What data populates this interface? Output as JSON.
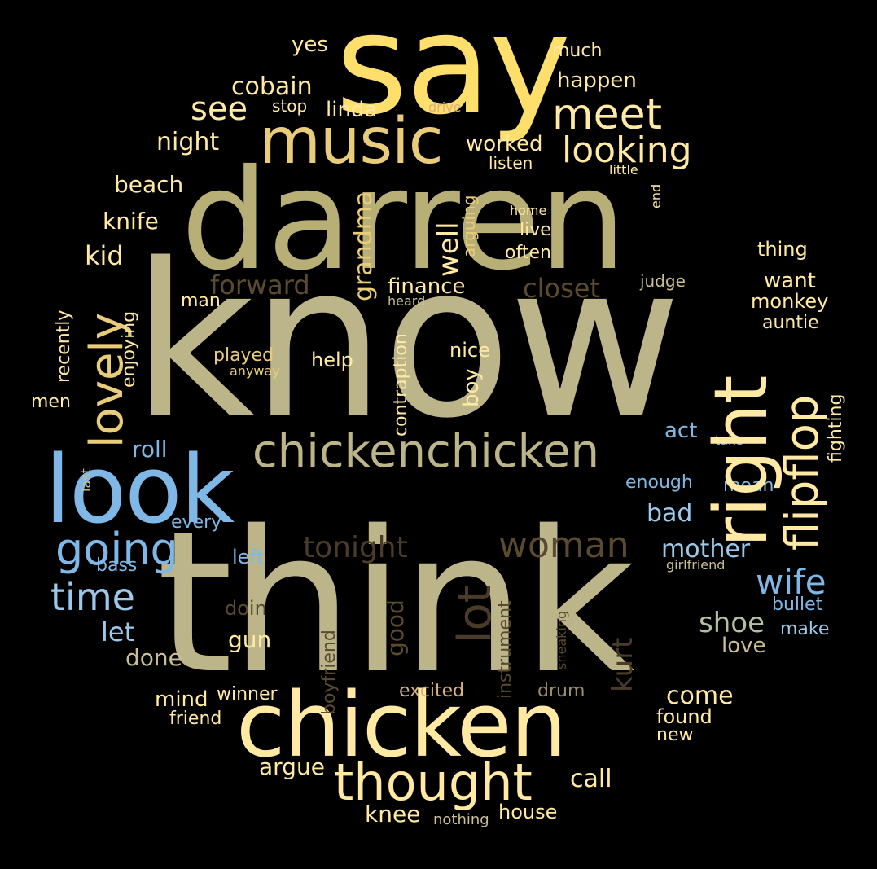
{
  "palette": {
    "background": "#000000",
    "yellow": "#FFDF6B",
    "light_yellow": "#FFE9A3",
    "gold": "#E8CC7A",
    "khaki": "#C4BD8E",
    "olive_khaki": "#B8AF76",
    "beige": "#C9BE95",
    "sage": "#B7BFA3",
    "sky_blue": "#7FB8E6",
    "light_blue": "#9CC8EA",
    "brown": "#5A4A30",
    "dark_brown": "#4A3C28",
    "tan": "#D8B27A",
    "muted_tan": "#9C8C68"
  },
  "words": [
    {
      "text": "know",
      "color": "#BDB58A"
    },
    {
      "text": "think",
      "color": "#BDB58A"
    },
    {
      "text": "darren",
      "color": "#B8AF76"
    },
    {
      "text": "say",
      "color": "#FFDF6B"
    },
    {
      "text": "chicken",
      "color": "#FFE9A3"
    },
    {
      "text": "look",
      "color": "#7FB8E6"
    },
    {
      "text": "music",
      "color": "#E8CC7A"
    },
    {
      "text": "right",
      "color": "#FFE9A3"
    },
    {
      "text": "chickenchicken",
      "color": "#BDB58A"
    },
    {
      "text": "thought",
      "color": "#FFE9A3"
    },
    {
      "text": "meet",
      "color": "#FFE9A3"
    },
    {
      "text": "flipflop",
      "color": "#FFE9A3"
    },
    {
      "text": "lovely",
      "color": "#E8CC7A"
    },
    {
      "text": "going",
      "color": "#7FB8E6"
    },
    {
      "text": "woman",
      "color": "#5A4A30"
    },
    {
      "text": "lot",
      "color": "#4A3C28"
    },
    {
      "text": "looking",
      "color": "#FFE9A3"
    },
    {
      "text": "time",
      "color": "#9CC8EA"
    },
    {
      "text": "tonight",
      "color": "#4A3C28"
    },
    {
      "text": "wife",
      "color": "#7FB8E6"
    },
    {
      "text": "see",
      "color": "#FFE9A3"
    },
    {
      "text": "forward",
      "color": "#5A4A30"
    },
    {
      "text": "closet",
      "color": "#5A4A30"
    },
    {
      "text": "mother",
      "color": "#9CC8EA"
    },
    {
      "text": "grandma",
      "color": "#E8CC7A"
    },
    {
      "text": "shoe",
      "color": "#B7BFA3"
    },
    {
      "text": "kurt",
      "color": "#4A3C28"
    },
    {
      "text": "cobain",
      "color": "#FFE9A3"
    },
    {
      "text": "happen",
      "color": "#FFE9A3"
    },
    {
      "text": "night",
      "color": "#FFE9A3"
    },
    {
      "text": "beach",
      "color": "#FFE9A3"
    },
    {
      "text": "knife",
      "color": "#FFE9A3"
    },
    {
      "text": "kid",
      "color": "#FFE9A3"
    },
    {
      "text": "well",
      "color": "#FFE9A3"
    },
    {
      "text": "finance",
      "color": "#FFE9A3"
    },
    {
      "text": "worked",
      "color": "#FFE9A3"
    },
    {
      "text": "linda",
      "color": "#FFE9A3"
    },
    {
      "text": "yes",
      "color": "#FFE9A3"
    },
    {
      "text": "much",
      "color": "#FFE9A3"
    },
    {
      "text": "stop",
      "color": "#FFE9A3"
    },
    {
      "text": "drive",
      "color": "#D8B27A"
    },
    {
      "text": "listen",
      "color": "#FFE9A3"
    },
    {
      "text": "little",
      "color": "#FFE9A3"
    },
    {
      "text": "end",
      "color": "#FFE9A3"
    },
    {
      "text": "home",
      "color": "#FFE9A3"
    },
    {
      "text": "live",
      "color": "#FFE9A3"
    },
    {
      "text": "often",
      "color": "#FFE9A3"
    },
    {
      "text": "arguing",
      "color": "#E8CC7A"
    },
    {
      "text": "thing",
      "color": "#FFE9A3"
    },
    {
      "text": "want",
      "color": "#FFE9A3"
    },
    {
      "text": "monkey",
      "color": "#FFE9A3"
    },
    {
      "text": "judge",
      "color": "#C9BE95"
    },
    {
      "text": "auntie",
      "color": "#FFE9A3"
    },
    {
      "text": "fighting",
      "color": "#FFE9A3"
    },
    {
      "text": "take",
      "color": "#7FB8E6"
    },
    {
      "text": "act",
      "color": "#7FB8E6"
    },
    {
      "text": "enough",
      "color": "#7FB8E6"
    },
    {
      "text": "mean",
      "color": "#7FB8E6"
    },
    {
      "text": "bad",
      "color": "#9CC8EA"
    },
    {
      "text": "girlfriend",
      "color": "#C9BE95"
    },
    {
      "text": "bullet",
      "color": "#7FB8E6"
    },
    {
      "text": "make",
      "color": "#9CC8EA"
    },
    {
      "text": "love",
      "color": "#C9BE95"
    },
    {
      "text": "come",
      "color": "#FFE9A3"
    },
    {
      "text": "found",
      "color": "#FFE9A3"
    },
    {
      "text": "new",
      "color": "#FFE9A3"
    },
    {
      "text": "call",
      "color": "#FFE9A3"
    },
    {
      "text": "house",
      "color": "#FFE9A3"
    },
    {
      "text": "nothing",
      "color": "#C9BE95"
    },
    {
      "text": "knee",
      "color": "#FFE9A3"
    },
    {
      "text": "argue",
      "color": "#FFE9A3"
    },
    {
      "text": "drum",
      "color": "#9C8C68"
    },
    {
      "text": "excited",
      "color": "#D8B27A"
    },
    {
      "text": "sneaking",
      "color": "#5A4A30"
    },
    {
      "text": "instrument",
      "color": "#5A4A30"
    },
    {
      "text": "boyfriend",
      "color": "#5A4A30"
    },
    {
      "text": "good",
      "color": "#5A4A30"
    },
    {
      "text": "winner",
      "color": "#FFE9A3"
    },
    {
      "text": "friend",
      "color": "#FFE9A3"
    },
    {
      "text": "mind",
      "color": "#FFE9A3"
    },
    {
      "text": "done",
      "color": "#C9BE95"
    },
    {
      "text": "gun",
      "color": "#FFE9A3"
    },
    {
      "text": "doin",
      "color": "#5A4A30"
    },
    {
      "text": "let",
      "color": "#9CC8EA"
    },
    {
      "text": "left",
      "color": "#7FB8E6"
    },
    {
      "text": "bass",
      "color": "#7FB8E6"
    },
    {
      "text": "every",
      "color": "#7FB8E6"
    },
    {
      "text": "roll",
      "color": "#7FB8E6"
    },
    {
      "text": "last",
      "color": "#C9BE95"
    },
    {
      "text": "men",
      "color": "#FFE9A3"
    },
    {
      "text": "recently",
      "color": "#FFE9A3"
    },
    {
      "text": "enjoying",
      "color": "#FFE9A3"
    },
    {
      "text": "man",
      "color": "#FFE9A3"
    },
    {
      "text": "played",
      "color": "#E8CC7A"
    },
    {
      "text": "anyway",
      "color": "#E8CC7A"
    },
    {
      "text": "help",
      "color": "#FFE9A3"
    },
    {
      "text": "contraption",
      "color": "#FFE9A3"
    },
    {
      "text": "heard",
      "color": "#C9BE95"
    },
    {
      "text": "nice",
      "color": "#FFE9A3"
    },
    {
      "text": "boy",
      "color": "#FFE9A3"
    }
  ]
}
